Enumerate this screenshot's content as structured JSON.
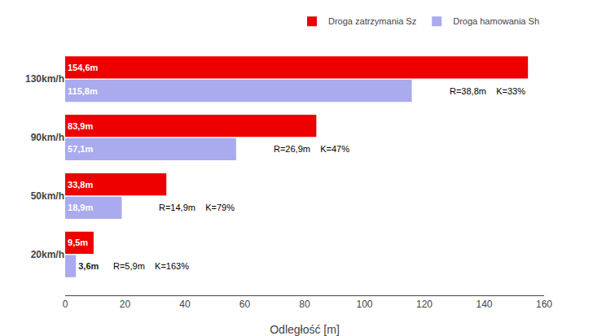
{
  "chart_data": {
    "type": "bar",
    "orientation": "horizontal",
    "categories": [
      "20km/h",
      "50km/h",
      "90km/h",
      "130km/h"
    ],
    "series": [
      {
        "name": "Droga zatrzymania Sz",
        "color": "#ee0000",
        "values": [
          9.5,
          33.8,
          83.9,
          154.6
        ],
        "value_labels": [
          "9,5m",
          "33,8m",
          "83,9m",
          "154,6m"
        ]
      },
      {
        "name": "Droga hamowania Sh",
        "color": "#aaaaee",
        "values": [
          3.6,
          18.9,
          57.1,
          115.8
        ],
        "value_labels": [
          "3,6m",
          "18,9m",
          "57,1m",
          "115,8m"
        ]
      }
    ],
    "annotations": [
      "R=5,9m    K=163%",
      "R=14,9m    K=79%",
      "R=26,9m    K=47%",
      "R=38,8m    K=33%"
    ],
    "xlabel": "Odległość [m]",
    "xlim": [
      0,
      160
    ],
    "xticks": [
      0,
      20,
      40,
      60,
      80,
      100,
      120,
      140,
      160
    ],
    "grid": false,
    "legend": "upper right",
    "data_labels": true
  }
}
